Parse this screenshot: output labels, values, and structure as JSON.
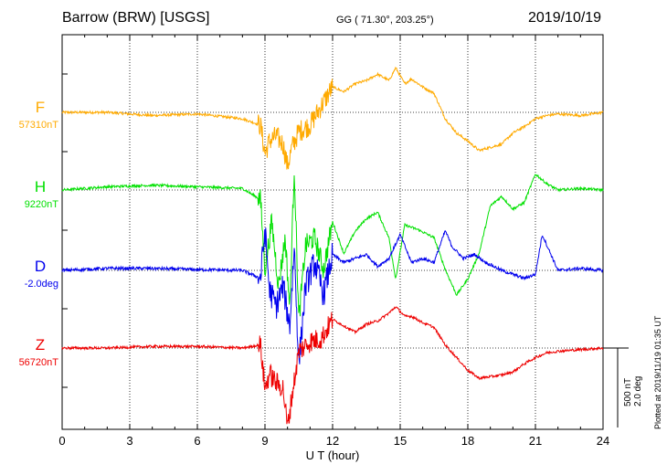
{
  "header": {
    "station": "Barrow (BRW)  [USGS]",
    "coords": "GG ( 71.30°, 203.25°)",
    "date": "2019/10/19"
  },
  "scale_bar": {
    "nT": "500 nT",
    "deg": "2.0 deg"
  },
  "plotted_note": "Plotted at 2019/11/19 01:35 UT",
  "chart_data": {
    "type": "line",
    "xlabel": "U T (hour)",
    "xlim": [
      0,
      24
    ],
    "xticks": [
      "0",
      "3",
      "6",
      "9",
      "12",
      "15",
      "18",
      "21",
      "24"
    ],
    "grid": true,
    "scale": {
      "nT_per_bar": 500,
      "deg_per_bar": 2.0
    },
    "series": [
      {
        "name": "F",
        "baseline": "57310nT",
        "color": "#ffaa00",
        "x": [
          0,
          2,
          4,
          6,
          8,
          8.8,
          9.0,
          9.2,
          9.5,
          9.8,
          10.0,
          10.2,
          10.5,
          11.0,
          11.5,
          12.0,
          12.5,
          13.0,
          13.5,
          14.0,
          14.5,
          14.8,
          15.2,
          15.5,
          16.0,
          16.5,
          17.0,
          17.5,
          18.0,
          18.5,
          19.0,
          19.5,
          20.0,
          20.5,
          21.0,
          21.5,
          22.0,
          23.0,
          24.0
        ],
        "values": [
          0,
          0,
          -20,
          -10,
          -40,
          -80,
          -260,
          -180,
          -150,
          -200,
          -340,
          -220,
          -120,
          -80,
          40,
          160,
          130,
          180,
          200,
          240,
          200,
          280,
          180,
          210,
          160,
          120,
          -40,
          -130,
          -180,
          -240,
          -220,
          -200,
          -130,
          -90,
          -40,
          -20,
          -10,
          -20,
          0
        ]
      },
      {
        "name": "H",
        "baseline": "9220nT",
        "color": "#00e000",
        "x": [
          0,
          2,
          4,
          6,
          8,
          8.8,
          9.0,
          9.3,
          9.6,
          9.9,
          10.1,
          10.3,
          10.5,
          10.8,
          11.2,
          11.6,
          12.0,
          12.5,
          13.0,
          13.5,
          14.0,
          14.5,
          14.8,
          15.2,
          15.8,
          16.5,
          17.0,
          17.5,
          18.0,
          18.5,
          19.0,
          19.5,
          20.0,
          20.5,
          21.0,
          21.5,
          22.0,
          23.0,
          24.0
        ],
        "values": [
          0,
          20,
          30,
          20,
          10,
          -60,
          -500,
          -200,
          -600,
          -300,
          -750,
          150,
          -820,
          -350,
          -300,
          -500,
          -200,
          -400,
          -260,
          -180,
          -140,
          -300,
          -560,
          -220,
          -250,
          -300,
          -500,
          -660,
          -560,
          -400,
          -100,
          -40,
          -120,
          -80,
          100,
          40,
          0,
          10,
          0
        ]
      },
      {
        "name": "D",
        "baseline": "-2.0deg",
        "color": "#0000ee",
        "x": [
          0,
          2,
          4,
          6,
          8,
          8.8,
          9.0,
          9.2,
          9.5,
          9.8,
          10.1,
          10.3,
          10.5,
          10.8,
          11.2,
          11.6,
          12.0,
          12.5,
          13.0,
          13.5,
          14.0,
          14.5,
          15.0,
          15.5,
          16.0,
          16.5,
          17.0,
          17.3,
          17.8,
          18.3,
          18.8,
          19.5,
          20.0,
          20.5,
          21.0,
          21.3,
          22.0,
          23.0,
          24.0
        ],
        "values": [
          0,
          0.05,
          0.05,
          0.02,
          0,
          -0.2,
          1.0,
          -0.5,
          -0.9,
          -0.4,
          -1.4,
          0.6,
          -2.4,
          -0.4,
          0.2,
          -0.6,
          0.4,
          0.2,
          0.3,
          0.4,
          0.1,
          0.3,
          0.9,
          0.2,
          0.3,
          0.2,
          1.0,
          0.6,
          0.3,
          0.4,
          0.2,
          0.0,
          -0.1,
          -0.2,
          -0.1,
          0.9,
          0.0,
          0.05,
          0
        ]
      },
      {
        "name": "Z",
        "baseline": "56720nT",
        "color": "#ee0000",
        "x": [
          0,
          2,
          4,
          6,
          8,
          8.8,
          9.0,
          9.2,
          9.5,
          9.8,
          10.0,
          10.2,
          10.5,
          11.0,
          11.5,
          12.0,
          12.5,
          13.0,
          13.5,
          14.0,
          14.5,
          14.8,
          15.2,
          15.5,
          16.0,
          16.5,
          17.0,
          17.5,
          18.0,
          18.5,
          19.0,
          19.5,
          20.0,
          20.5,
          21.0,
          21.5,
          22.0,
          23.0,
          24.0
        ],
        "values": [
          0,
          0,
          10,
          10,
          0,
          20,
          -260,
          -160,
          -220,
          -250,
          -500,
          -300,
          -20,
          40,
          60,
          180,
          140,
          100,
          150,
          170,
          220,
          260,
          200,
          200,
          160,
          130,
          20,
          -60,
          -140,
          -190,
          -180,
          -170,
          -150,
          -100,
          -60,
          -30,
          -20,
          -10,
          0
        ]
      }
    ]
  }
}
